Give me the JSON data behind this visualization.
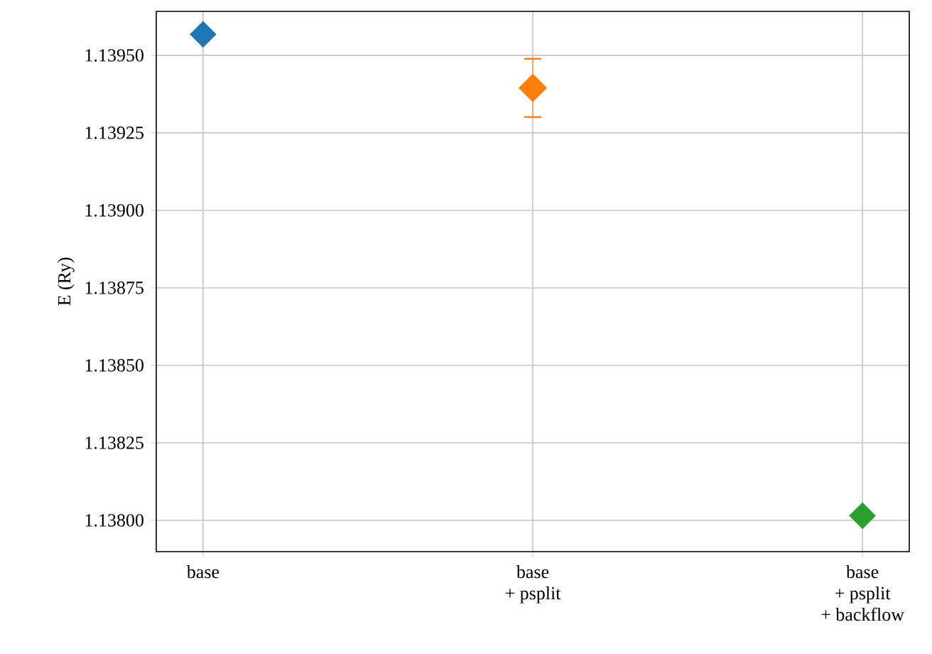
{
  "chart_data": {
    "type": "scatter",
    "ylabel": "E (Ry)",
    "categories": [
      "base",
      "base\n+ psplit",
      "base\n+ psplit\n+ backflow"
    ],
    "values": [
      1.139568,
      1.139395,
      1.138015
    ],
    "colors": [
      "#1f77b4",
      "#ff7f0e",
      "#2ca02c"
    ],
    "errors": [
      null,
      9.4e-05,
      null
    ],
    "ylim": [
      1.137899,
      1.139642
    ],
    "yticks": [
      {
        "value": 1.138,
        "label": "1.13800"
      },
      {
        "value": 1.13825,
        "label": "1.13825"
      },
      {
        "value": 1.1385,
        "label": "1.13850"
      },
      {
        "value": 1.13875,
        "label": "1.13875"
      },
      {
        "value": 1.139,
        "label": "1.13900"
      },
      {
        "value": 1.13925,
        "label": "1.13925"
      },
      {
        "value": 1.1395,
        "label": "1.13950"
      }
    ],
    "grid": true,
    "marker": "diamond"
  }
}
